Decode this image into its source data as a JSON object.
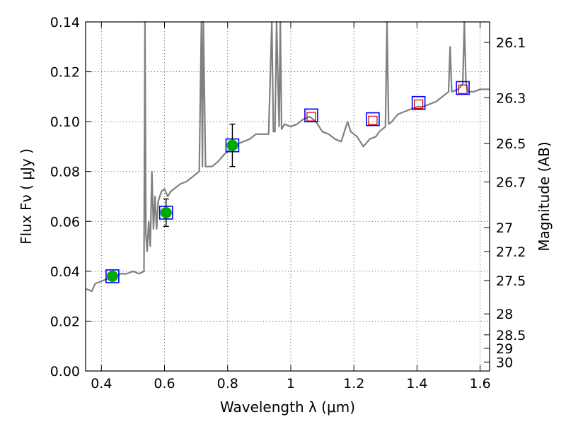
{
  "chart_data": {
    "type": "line",
    "xlabel": "Wavelength  λ (μm)",
    "ylabel": "Flux  Fν  ( μJy )",
    "ylabel_right": "Magnitude (AB)",
    "xlim": [
      0.35,
      1.63
    ],
    "ylim": [
      0,
      0.14
    ],
    "grid": true,
    "x_ticks": [
      0.4,
      0.6,
      0.8,
      1.0,
      1.2,
      1.4,
      1.6
    ],
    "x_tick_labels": [
      "0.4",
      "0.6",
      "0.8",
      "1",
      "1.2",
      "1.4",
      "1.6"
    ],
    "y_ticks": [
      0,
      0.02,
      0.04,
      0.06,
      0.08,
      0.1,
      0.12,
      0.14
    ],
    "y_tick_labels": [
      "0.00",
      "0.02",
      "0.04",
      "0.06",
      "0.08",
      "0.10",
      "0.12",
      "0.14"
    ],
    "right_axis_ticks": [
      {
        "label": "26.1",
        "flux": 0.1318
      },
      {
        "label": "26.3",
        "flux": 0.1096
      },
      {
        "label": "26.5",
        "flux": 0.0912
      },
      {
        "label": "26.7",
        "flux": 0.0758
      },
      {
        "label": "27",
        "flux": 0.0575
      },
      {
        "label": "27.2",
        "flux": 0.0479
      },
      {
        "label": "27.5",
        "flux": 0.0363
      },
      {
        "label": "28",
        "flux": 0.0229
      },
      {
        "label": "28.5",
        "flux": 0.0145
      },
      {
        "label": "29",
        "flux": 0.0091
      },
      {
        "label": "30",
        "flux": 0.0036
      }
    ],
    "series": [
      {
        "role": "model-spectrum",
        "color": "#808080",
        "x": [
          0.35,
          0.37,
          0.38,
          0.4,
          0.42,
          0.44,
          0.46,
          0.48,
          0.5,
          0.52,
          0.535,
          0.538,
          0.541,
          0.545,
          0.55,
          0.555,
          0.56,
          0.565,
          0.57,
          0.575,
          0.58,
          0.59,
          0.6,
          0.61,
          0.62,
          0.63,
          0.65,
          0.67,
          0.69,
          0.71,
          0.717,
          0.72,
          0.723,
          0.73,
          0.75,
          0.77,
          0.79,
          0.81,
          0.83,
          0.85,
          0.87,
          0.89,
          0.91,
          0.93,
          0.94,
          0.945,
          0.95,
          0.955,
          0.963,
          0.967,
          0.971,
          0.98,
          1.0,
          1.02,
          1.04,
          1.06,
          1.08,
          1.1,
          1.12,
          1.14,
          1.16,
          1.18,
          1.19,
          1.21,
          1.23,
          1.25,
          1.27,
          1.28,
          1.29,
          1.3,
          1.305,
          1.31,
          1.32,
          1.34,
          1.36,
          1.38,
          1.4,
          1.42,
          1.44,
          1.46,
          1.48,
          1.5,
          1.505,
          1.51,
          1.53,
          1.545,
          1.55,
          1.555,
          1.56,
          1.58,
          1.6,
          1.63
        ],
        "y": [
          0.033,
          0.032,
          0.035,
          0.036,
          0.037,
          0.037,
          0.039,
          0.039,
          0.04,
          0.039,
          0.04,
          0.14,
          0.055,
          0.048,
          0.06,
          0.05,
          0.08,
          0.057,
          0.07,
          0.057,
          0.068,
          0.072,
          0.073,
          0.07,
          0.072,
          0.073,
          0.075,
          0.076,
          0.078,
          0.08,
          0.14,
          0.082,
          0.14,
          0.082,
          0.082,
          0.084,
          0.087,
          0.089,
          0.091,
          0.092,
          0.093,
          0.095,
          0.095,
          0.095,
          0.14,
          0.096,
          0.096,
          0.14,
          0.098,
          0.14,
          0.097,
          0.099,
          0.098,
          0.099,
          0.101,
          0.102,
          0.1,
          0.096,
          0.095,
          0.093,
          0.092,
          0.1,
          0.096,
          0.094,
          0.09,
          0.093,
          0.094,
          0.096,
          0.097,
          0.098,
          0.14,
          0.099,
          0.1,
          0.103,
          0.104,
          0.105,
          0.106,
          0.106,
          0.107,
          0.108,
          0.11,
          0.112,
          0.13,
          0.112,
          0.113,
          0.115,
          0.14,
          0.116,
          0.112,
          0.112,
          0.113,
          0.113
        ]
      },
      {
        "role": "model-photometry",
        "marker": "open-square",
        "color": "#0000ff",
        "x": [
          0.435,
          0.605,
          0.815,
          1.065,
          1.26,
          1.405,
          1.545
        ],
        "y": [
          0.038,
          0.0635,
          0.0905,
          0.1025,
          0.101,
          0.1075,
          0.1135
        ]
      },
      {
        "role": "detections",
        "marker": "filled-circle",
        "color": "#00aa00",
        "x": [
          0.435,
          0.605,
          0.815
        ],
        "y": [
          0.038,
          0.0635,
          0.0905
        ],
        "y_err": [
          0.0,
          0.0055,
          0.0085
        ]
      },
      {
        "role": "upper-limits",
        "marker": "open-square-small",
        "color": "#cc0000",
        "x": [
          1.065,
          1.26,
          1.405,
          1.545
        ],
        "y": [
          0.102,
          0.1005,
          0.107,
          0.113
        ]
      }
    ]
  }
}
